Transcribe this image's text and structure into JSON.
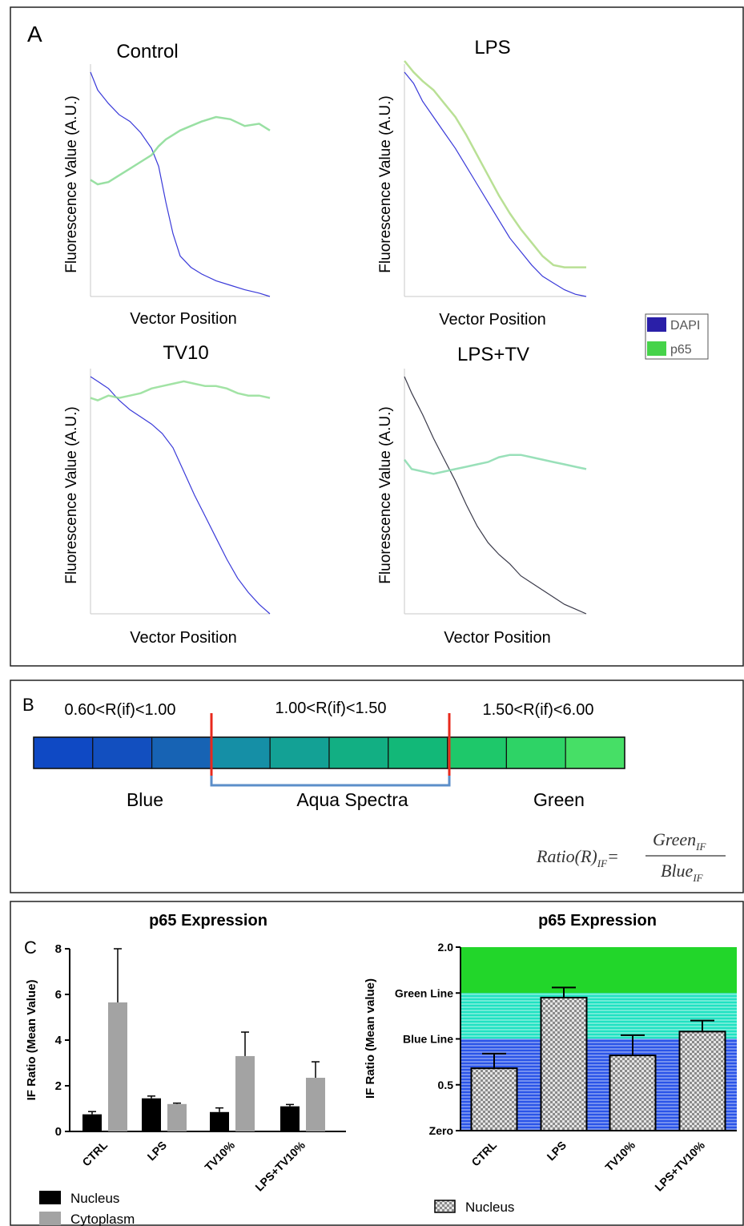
{
  "panel_a": {
    "letter": "A",
    "legend": [
      {
        "name": "DAPI",
        "color": "#2a1fa8"
      },
      {
        "name": "p65",
        "color": "#46d34a"
      }
    ]
  },
  "panel_b": {
    "letter": "B",
    "ranges": [
      "0.60<R(if)<1.00",
      "1.00<R(if)<1.50",
      "1.50<R(if)<6.00"
    ],
    "labels": [
      "Blue",
      "Aqua Spectra",
      "Green"
    ],
    "boxes": [
      "#0f49c4",
      "#124fbf",
      "#1763b4",
      "#158fa6",
      "#13a195",
      "#12af83",
      "#12b878",
      "#1ec86a",
      "#2ed366",
      "#46df66"
    ],
    "formula": {
      "lhs": "Ratio(R)",
      "lhs_sub": "IF",
      "eq": "=",
      "num": "Green",
      "num_sub": "IF",
      "den": "Blue",
      "den_sub": "IF"
    }
  },
  "panel_c": {
    "letter": "C",
    "nucleus_color": "#000000",
    "cytoplasm_color": "#a3a3a3"
  },
  "chart_data": [
    {
      "type": "line",
      "title": "Control",
      "xlabel": "Vector Position",
      "ylabel": "Fluorescence Value (A.U.)",
      "x": [
        0,
        0.04,
        0.1,
        0.16,
        0.22,
        0.28,
        0.34,
        0.38,
        0.42,
        0.46,
        0.5,
        0.56,
        0.62,
        0.7,
        0.78,
        0.86,
        0.94,
        1.0
      ],
      "series": [
        {
          "name": "DAPI",
          "color": "#3a3ad9",
          "values": [
            1.0,
            0.92,
            0.86,
            0.81,
            0.78,
            0.73,
            0.66,
            0.58,
            0.42,
            0.28,
            0.18,
            0.13,
            0.1,
            0.07,
            0.05,
            0.03,
            0.015,
            0.0
          ]
        },
        {
          "name": "p65",
          "color": "#7fd88c",
          "values": [
            0.52,
            0.5,
            0.51,
            0.54,
            0.57,
            0.6,
            0.63,
            0.67,
            0.7,
            0.72,
            0.74,
            0.76,
            0.78,
            0.8,
            0.79,
            0.76,
            0.77,
            0.74
          ]
        }
      ]
    },
    {
      "type": "line",
      "title": "LPS",
      "xlabel": "Vector Position",
      "ylabel": "Fluorescence Value (A.U.)",
      "x": [
        0,
        0.05,
        0.1,
        0.16,
        0.22,
        0.28,
        0.34,
        0.4,
        0.46,
        0.52,
        0.58,
        0.64,
        0.7,
        0.76,
        0.82,
        0.88,
        0.94,
        1.0
      ],
      "series": [
        {
          "name": "DAPI",
          "color": "#3a3ad9",
          "values": [
            1.0,
            0.95,
            0.87,
            0.8,
            0.73,
            0.66,
            0.58,
            0.5,
            0.42,
            0.34,
            0.26,
            0.2,
            0.14,
            0.09,
            0.06,
            0.03,
            0.01,
            0.0
          ]
        },
        {
          "name": "p65",
          "color": "#a8d87a",
          "values": [
            1.05,
            1.0,
            0.96,
            0.92,
            0.86,
            0.8,
            0.72,
            0.63,
            0.54,
            0.45,
            0.37,
            0.3,
            0.24,
            0.18,
            0.14,
            0.13,
            0.13,
            0.13
          ]
        }
      ]
    },
    {
      "type": "line",
      "title": "TV10",
      "xlabel": "Vector Position",
      "ylabel": "Fluorescence Value (A.U.)",
      "x": [
        0,
        0.04,
        0.1,
        0.16,
        0.22,
        0.28,
        0.34,
        0.4,
        0.46,
        0.52,
        0.58,
        0.64,
        0.7,
        0.76,
        0.82,
        0.88,
        0.94,
        1.0
      ],
      "series": [
        {
          "name": "DAPI",
          "color": "#3a3ad9",
          "values": [
            1.0,
            0.98,
            0.95,
            0.9,
            0.86,
            0.83,
            0.8,
            0.76,
            0.7,
            0.6,
            0.5,
            0.41,
            0.32,
            0.23,
            0.15,
            0.09,
            0.04,
            0.0
          ]
        },
        {
          "name": "p65",
          "color": "#8bdc8f",
          "values": [
            0.91,
            0.9,
            0.92,
            0.91,
            0.92,
            0.93,
            0.95,
            0.96,
            0.97,
            0.98,
            0.97,
            0.96,
            0.96,
            0.95,
            0.93,
            0.92,
            0.92,
            0.91
          ]
        }
      ]
    },
    {
      "type": "line",
      "title": "LPS+TV",
      "xlabel": "Vector Position",
      "ylabel": "Fluorescence Value (A.U.)",
      "x": [
        0,
        0.04,
        0.1,
        0.16,
        0.22,
        0.28,
        0.34,
        0.4,
        0.46,
        0.52,
        0.58,
        0.64,
        0.7,
        0.76,
        0.82,
        0.88,
        0.94,
        1.0
      ],
      "series": [
        {
          "name": "DAPI",
          "color": "#3a3a4a",
          "values": [
            1.0,
            0.93,
            0.84,
            0.74,
            0.65,
            0.56,
            0.46,
            0.37,
            0.3,
            0.25,
            0.21,
            0.16,
            0.13,
            0.1,
            0.07,
            0.04,
            0.02,
            0.0
          ]
        },
        {
          "name": "p65",
          "color": "#7fd8a8",
          "values": [
            0.65,
            0.61,
            0.6,
            0.59,
            0.6,
            0.61,
            0.62,
            0.63,
            0.64,
            0.66,
            0.67,
            0.67,
            0.66,
            0.65,
            0.64,
            0.63,
            0.62,
            0.61
          ]
        }
      ]
    },
    {
      "type": "bar",
      "title": "p65 Expression",
      "xlabel": "",
      "ylabel": "IF Ratio (Mean Value)",
      "categories": [
        "CTRL",
        "LPS",
        "TV10%",
        "LPS+TV10%"
      ],
      "ylim": [
        0,
        8
      ],
      "yticks": [
        0,
        2,
        4,
        6,
        8
      ],
      "series": [
        {
          "name": "Nucleus",
          "values": [
            0.75,
            1.45,
            0.85,
            1.1
          ],
          "errors": [
            0.12,
            0.1,
            0.18,
            0.08
          ]
        },
        {
          "name": "Cytoplasm",
          "values": [
            5.65,
            1.2,
            3.3,
            2.35
          ],
          "errors": [
            2.35,
            0.04,
            1.05,
            0.7
          ]
        }
      ],
      "legend": "bottom-left"
    },
    {
      "type": "bar",
      "title": "p65 Expression",
      "xlabel": "",
      "ylabel": "IF Ratio (Mean value)",
      "categories": [
        "CTRL",
        "LPS",
        "TV10%",
        "LPS+TV10%"
      ],
      "ylim": [
        0,
        2.0
      ],
      "yticks": [
        {
          "value": 0,
          "label": "Zero"
        },
        {
          "value": 0.5,
          "label": "0.5"
        },
        {
          "value": 1.0,
          "label": "Blue Line"
        },
        {
          "value": 1.5,
          "label": "Green Line"
        },
        {
          "value": 2.0,
          "label": "2.0"
        }
      ],
      "bands": [
        {
          "from": 0,
          "to": 1.0,
          "color": "#2a54e8"
        },
        {
          "from": 1.0,
          "to": 1.5,
          "color": "#20e2c2"
        },
        {
          "from": 1.5,
          "to": 2.0,
          "color": "#22d62a"
        }
      ],
      "series": [
        {
          "name": "Nucleus",
          "values": [
            0.68,
            1.45,
            0.82,
            1.08
          ],
          "errors": [
            0.16,
            0.11,
            0.22,
            0.12
          ]
        }
      ],
      "legend": "bottom"
    }
  ]
}
